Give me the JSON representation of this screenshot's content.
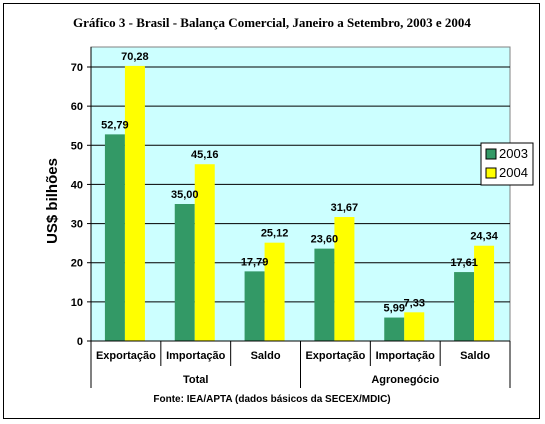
{
  "chart_data": {
    "type": "bar",
    "title": "Gráfico 3 - Brasil - Balança Comercial, Janeiro a Setembro, 2003 e 2004",
    "ylabel": "US$ bilhões",
    "ylim": [
      0,
      70
    ],
    "yticks": [
      "0",
      "10",
      "20",
      "30",
      "40",
      "50",
      "60",
      "70"
    ],
    "categories": [
      "Exportação",
      "Importação",
      "Saldo",
      "Exportação",
      "Importação",
      "Saldo"
    ],
    "groups": [
      {
        "label": "Total",
        "categories": [
          "Exportação",
          "Importação",
          "Saldo"
        ]
      },
      {
        "label": "Agronegócio",
        "categories": [
          "Exportação",
          "Importação",
          "Saldo"
        ]
      }
    ],
    "series": [
      {
        "name": "2003",
        "color": "#339966",
        "values": [
          52.79,
          35.0,
          17.79,
          23.6,
          5.99,
          17.61
        ],
        "labels": [
          "52,79",
          "35,00",
          "17,79",
          "23,60",
          "5,99",
          "17,61"
        ]
      },
      {
        "name": "2004",
        "color": "#FFFF00",
        "values": [
          70.28,
          45.16,
          25.12,
          31.67,
          7.33,
          24.34
        ],
        "labels": [
          "70,28",
          "45,16",
          "25,12",
          "31,67",
          "7,33",
          "24,34"
        ]
      }
    ],
    "grid": true,
    "plot_background": "#CCFFFF",
    "legend_position": "right",
    "source": "Fonte: IEA/APTA (dados básicos da SECEX/MDIC)"
  }
}
